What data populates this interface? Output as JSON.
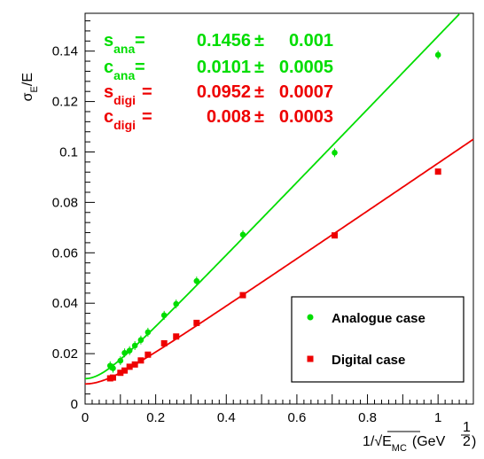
{
  "chart_data": {
    "type": "scatter",
    "xlabel": "1/√E_MC (GeV^-1/2)",
    "ylabel": "σE/E",
    "xlim": [
      0,
      1.1
    ],
    "ylim": [
      0,
      0.155
    ],
    "x_ticks": [
      "0",
      "0.2",
      "0.4",
      "0.6",
      "0.8",
      "1"
    ],
    "y_ticks": [
      "0",
      "0.02",
      "0.04",
      "0.06",
      "0.08",
      "0.1",
      "0.12",
      "0.14"
    ],
    "grid": false,
    "legend_position": "bottom-right",
    "series": [
      {
        "name": "Analogue case",
        "color": "#00dd00",
        "marker": "circle",
        "x": [
          0.071,
          0.079,
          0.1,
          0.112,
          0.126,
          0.141,
          0.158,
          0.178,
          0.224,
          0.258,
          0.316,
          0.447,
          0.707,
          1.0
        ],
        "y": [
          0.0152,
          0.0142,
          0.0172,
          0.0203,
          0.0212,
          0.0232,
          0.0254,
          0.0285,
          0.0352,
          0.0397,
          0.0488,
          0.0672,
          0.0997,
          0.1385
        ]
      },
      {
        "name": "Digital case",
        "color": "#ee0000",
        "marker": "square",
        "x": [
          0.071,
          0.079,
          0.1,
          0.112,
          0.126,
          0.141,
          0.158,
          0.178,
          0.224,
          0.258,
          0.316,
          0.447,
          0.707,
          1.0
        ],
        "y": [
          0.0102,
          0.0105,
          0.0124,
          0.0133,
          0.0148,
          0.0157,
          0.0173,
          0.0196,
          0.0241,
          0.0268,
          0.0322,
          0.0432,
          0.0669,
          0.0922
        ]
      }
    ],
    "fits": [
      {
        "series": "Analogue case",
        "s": 0.1456,
        "c": 0.0101,
        "color": "#00dd00",
        "range": [
          0,
          1.1
        ]
      },
      {
        "series": "Digital case",
        "s": 0.0952,
        "c": 0.008,
        "color": "#ee0000",
        "range": [
          0,
          1.1
        ]
      }
    ],
    "annotations": [
      {
        "label": "s",
        "sub": "ana",
        "eq": "=",
        "value": "0.1456",
        "pm": "±",
        "err": "0.001",
        "color": "#00dd00"
      },
      {
        "label": "c",
        "sub": "ana",
        "eq": "=",
        "value": "0.0101",
        "pm": "±",
        "err": "0.0005",
        "color": "#00dd00"
      },
      {
        "label": "s",
        "sub": "digi",
        "eq": "=",
        "value": "0.0952",
        "pm": "±",
        "err": "0.0007",
        "color": "#ee0000"
      },
      {
        "label": "c",
        "sub": "digi",
        "eq": "=",
        "value": "0.008",
        "pm": "±",
        "err": "0.0003",
        "color": "#ee0000"
      }
    ],
    "ylabel_parts": {
      "sigma": "σ",
      "sub": "E",
      "rest": "/E"
    },
    "xlabel_parts": {
      "pre": "1/√",
      "e": "E",
      "sub": "MC",
      "unit": "(GeV",
      "exp_num": "1",
      "exp_den": "2",
      "close": ")"
    }
  }
}
